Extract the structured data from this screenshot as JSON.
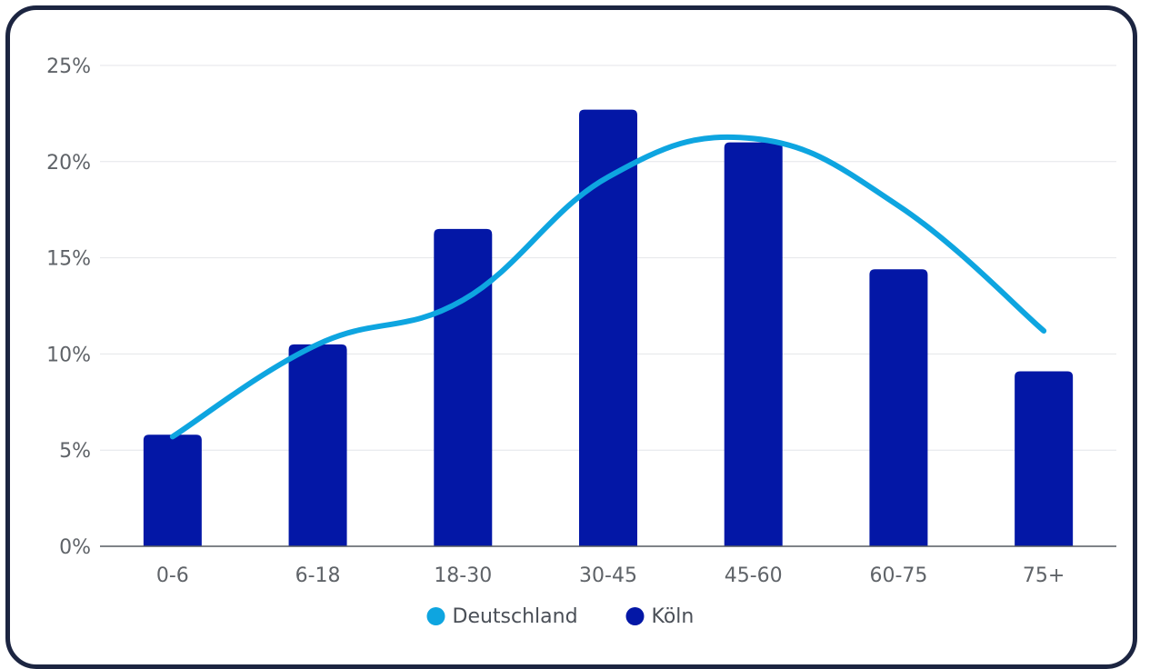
{
  "chart_data": {
    "type": "bar",
    "categories": [
      "0-6",
      "6-18",
      "18-30",
      "30-45",
      "45-60",
      "60-75",
      "75+"
    ],
    "series": [
      {
        "name": "Deutschland",
        "type": "line",
        "color": "#0ea5e0",
        "values": [
          5.7,
          10.5,
          12.8,
          19.2,
          21.2,
          17.7,
          11.2
        ]
      },
      {
        "name": "Köln",
        "type": "bar",
        "color": "#0317a6",
        "values": [
          5.8,
          10.5,
          16.5,
          22.7,
          21.0,
          14.4,
          9.1
        ]
      }
    ],
    "ylim": [
      0,
      25
    ],
    "yticks": [
      0,
      5,
      10,
      15,
      20,
      25
    ],
    "ytick_labels": [
      "0%",
      "5%",
      "10%",
      "15%",
      "20%",
      "25%"
    ],
    "grid": true,
    "legend_position": "bottom-center"
  }
}
